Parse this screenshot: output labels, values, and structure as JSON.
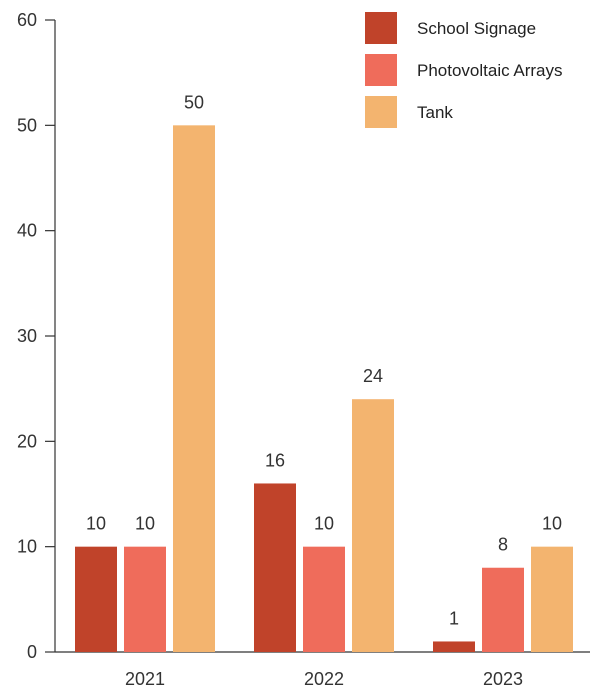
{
  "chart_data": {
    "type": "bar",
    "title": "",
    "xlabel": "",
    "ylabel": "",
    "categories": [
      "2021",
      "2022",
      "2023"
    ],
    "series": [
      {
        "name": "School Signage",
        "values": [
          10,
          16,
          1
        ],
        "labels": [
          "10",
          "16",
          "1"
        ],
        "color": "#c0432a"
      },
      {
        "name": "Photovoltaic Arrays",
        "values": [
          10,
          10,
          8
        ],
        "labels": [
          "10",
          "10",
          "8"
        ],
        "color": "#ef6c5b"
      },
      {
        "name": "Tank",
        "values": [
          50,
          24,
          10
        ],
        "labels": [
          "50",
          "24",
          "10"
        ],
        "color": "#f3b46f"
      }
    ],
    "ylim": [
      0,
      60
    ],
    "yticks": [
      0,
      10,
      20,
      30,
      40,
      50,
      60
    ],
    "ytick_labels": [
      "0",
      "10",
      "20",
      "30",
      "40",
      "50",
      "60"
    ],
    "grid": false,
    "legend_position": "top-right"
  }
}
